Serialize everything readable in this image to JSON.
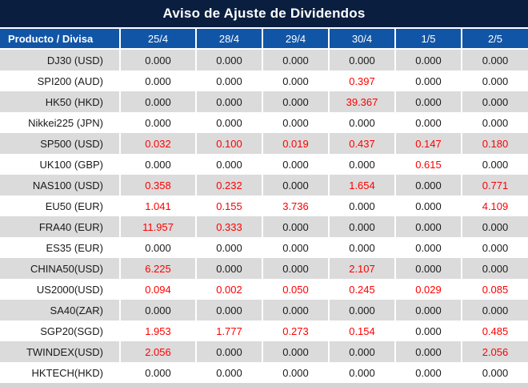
{
  "title": "Aviso de Ajuste de Dividendos",
  "colors": {
    "title_bg": "#0A1E3F",
    "header_bg": "#1155A6",
    "row_alt_bg": "#DBDBDB",
    "row_bg": "#FFFFFF",
    "value_red": "#FE0000",
    "text_dark": "#1A1A1A",
    "header_text": "#FFFFFF",
    "bottom_strip": "#D4D4D4"
  },
  "table": {
    "product_column_header": "Producto / Divisa",
    "date_columns": [
      "25/4",
      "28/4",
      "29/4",
      "30/4",
      "1/5",
      "2/5"
    ],
    "rows": [
      {
        "product": "DJ30 (USD)",
        "values": [
          "0.000",
          "0.000",
          "0.000",
          "0.000",
          "0.000",
          "0.000"
        ],
        "red": [
          0,
          0,
          0,
          0,
          0,
          0
        ]
      },
      {
        "product": "SPI200 (AUD)",
        "values": [
          "0.000",
          "0.000",
          "0.000",
          "0.397",
          "0.000",
          "0.000"
        ],
        "red": [
          0,
          0,
          0,
          1,
          0,
          0
        ]
      },
      {
        "product": "HK50 (HKD)",
        "values": [
          "0.000",
          "0.000",
          "0.000",
          "39.367",
          "0.000",
          "0.000"
        ],
        "red": [
          0,
          0,
          0,
          1,
          0,
          0
        ]
      },
      {
        "product": "Nikkei225 (JPN)",
        "values": [
          "0.000",
          "0.000",
          "0.000",
          "0.000",
          "0.000",
          "0.000"
        ],
        "red": [
          0,
          0,
          0,
          0,
          0,
          0
        ]
      },
      {
        "product": "SP500 (USD)",
        "values": [
          "0.032",
          "0.100",
          "0.019",
          "0.437",
          "0.147",
          "0.180"
        ],
        "red": [
          1,
          1,
          1,
          1,
          1,
          1
        ]
      },
      {
        "product": "UK100 (GBP)",
        "values": [
          "0.000",
          "0.000",
          "0.000",
          "0.000",
          "0.615",
          "0.000"
        ],
        "red": [
          0,
          0,
          0,
          0,
          1,
          0
        ]
      },
      {
        "product": "NAS100 (USD)",
        "values": [
          "0.358",
          "0.232",
          "0.000",
          "1.654",
          "0.000",
          "0.771"
        ],
        "red": [
          1,
          1,
          0,
          1,
          0,
          1
        ]
      },
      {
        "product": "EU50 (EUR)",
        "values": [
          "1.041",
          "0.155",
          "3.736",
          "0.000",
          "0.000",
          "4.109"
        ],
        "red": [
          1,
          1,
          1,
          0,
          0,
          1
        ]
      },
      {
        "product": "FRA40 (EUR)",
        "values": [
          "11.957",
          "0.333",
          "0.000",
          "0.000",
          "0.000",
          "0.000"
        ],
        "red": [
          1,
          1,
          0,
          0,
          0,
          0
        ]
      },
      {
        "product": "ES35 (EUR)",
        "values": [
          "0.000",
          "0.000",
          "0.000",
          "0.000",
          "0.000",
          "0.000"
        ],
        "red": [
          0,
          0,
          0,
          0,
          0,
          0
        ]
      },
      {
        "product": "CHINA50(USD)",
        "values": [
          "6.225",
          "0.000",
          "0.000",
          "2.107",
          "0.000",
          "0.000"
        ],
        "red": [
          1,
          0,
          0,
          1,
          0,
          0
        ]
      },
      {
        "product": "US2000(USD)",
        "values": [
          "0.094",
          "0.002",
          "0.050",
          "0.245",
          "0.029",
          "0.085"
        ],
        "red": [
          1,
          1,
          1,
          1,
          1,
          1
        ]
      },
      {
        "product": "SA40(ZAR)",
        "values": [
          "0.000",
          "0.000",
          "0.000",
          "0.000",
          "0.000",
          "0.000"
        ],
        "red": [
          0,
          0,
          0,
          0,
          0,
          0
        ]
      },
      {
        "product": "SGP20(SGD)",
        "values": [
          "1.953",
          "1.777",
          "0.273",
          "0.154",
          "0.000",
          "0.485"
        ],
        "red": [
          1,
          1,
          1,
          1,
          0,
          1
        ]
      },
      {
        "product": "TWINDEX(USD)",
        "values": [
          "2.056",
          "0.000",
          "0.000",
          "0.000",
          "0.000",
          "2.056"
        ],
        "red": [
          1,
          0,
          0,
          0,
          0,
          1
        ]
      },
      {
        "product": "HKTECH(HKD)",
        "values": [
          "0.000",
          "0.000",
          "0.000",
          "0.000",
          "0.000",
          "0.000"
        ],
        "red": [
          0,
          0,
          0,
          0,
          0,
          0
        ]
      }
    ]
  }
}
